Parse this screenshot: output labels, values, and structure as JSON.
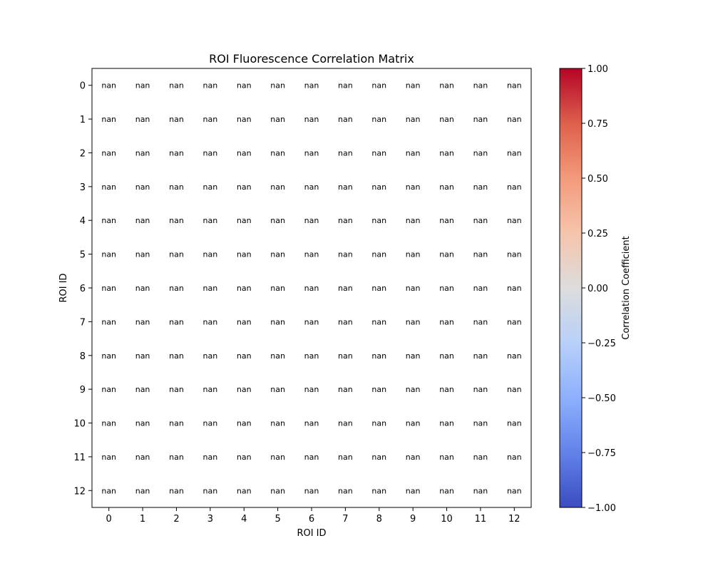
{
  "chart_data": {
    "type": "heatmap",
    "title": "ROI Fluorescence Correlation Matrix",
    "xlabel": "ROI ID",
    "ylabel": "ROI ID",
    "x_categories": [
      "0",
      "1",
      "2",
      "3",
      "4",
      "5",
      "6",
      "7",
      "8",
      "9",
      "10",
      "11",
      "12"
    ],
    "y_categories": [
      "0",
      "1",
      "2",
      "3",
      "4",
      "5",
      "6",
      "7",
      "8",
      "9",
      "10",
      "11",
      "12"
    ],
    "cell_label": "nan",
    "values": [
      [
        null,
        null,
        null,
        null,
        null,
        null,
        null,
        null,
        null,
        null,
        null,
        null,
        null
      ],
      [
        null,
        null,
        null,
        null,
        null,
        null,
        null,
        null,
        null,
        null,
        null,
        null,
        null
      ],
      [
        null,
        null,
        null,
        null,
        null,
        null,
        null,
        null,
        null,
        null,
        null,
        null,
        null
      ],
      [
        null,
        null,
        null,
        null,
        null,
        null,
        null,
        null,
        null,
        null,
        null,
        null,
        null
      ],
      [
        null,
        null,
        null,
        null,
        null,
        null,
        null,
        null,
        null,
        null,
        null,
        null,
        null
      ],
      [
        null,
        null,
        null,
        null,
        null,
        null,
        null,
        null,
        null,
        null,
        null,
        null,
        null
      ],
      [
        null,
        null,
        null,
        null,
        null,
        null,
        null,
        null,
        null,
        null,
        null,
        null,
        null
      ],
      [
        null,
        null,
        null,
        null,
        null,
        null,
        null,
        null,
        null,
        null,
        null,
        null,
        null
      ],
      [
        null,
        null,
        null,
        null,
        null,
        null,
        null,
        null,
        null,
        null,
        null,
        null,
        null
      ],
      [
        null,
        null,
        null,
        null,
        null,
        null,
        null,
        null,
        null,
        null,
        null,
        null,
        null
      ],
      [
        null,
        null,
        null,
        null,
        null,
        null,
        null,
        null,
        null,
        null,
        null,
        null,
        null
      ],
      [
        null,
        null,
        null,
        null,
        null,
        null,
        null,
        null,
        null,
        null,
        null,
        null,
        null
      ],
      [
        null,
        null,
        null,
        null,
        null,
        null,
        null,
        null,
        null,
        null,
        null,
        null,
        null
      ]
    ],
    "colorbar": {
      "label": "Correlation Coefficient",
      "colormap": "coolwarm",
      "vmin": -1.0,
      "vmax": 1.0,
      "ticks": [
        -1.0,
        -0.75,
        -0.5,
        -0.25,
        0.0,
        0.25,
        0.5,
        0.75,
        1.0
      ],
      "tick_labels": [
        "−1.00",
        "−0.75",
        "−0.50",
        "−0.25",
        "0.00",
        "0.25",
        "0.50",
        "0.75",
        "1.00"
      ],
      "colors": [
        "#3b4cc0",
        "#6282ea",
        "#8db0fe",
        "#b8d0f9",
        "#dddddd",
        "#f5c4ac",
        "#f49a7b",
        "#de604d",
        "#b40426"
      ]
    },
    "grid": false
  }
}
